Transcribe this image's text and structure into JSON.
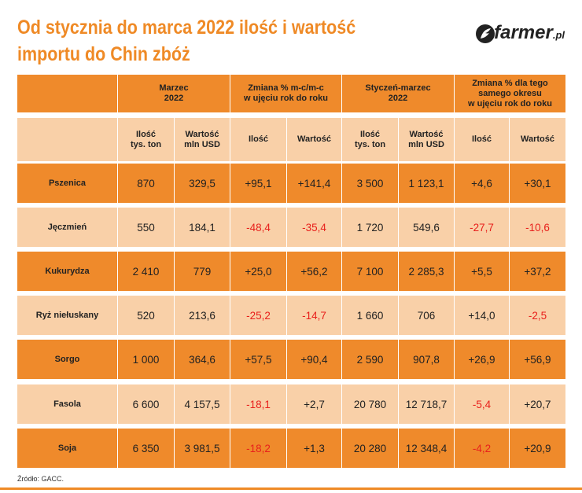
{
  "header": {
    "title_lines": [
      "Od stycznia do marca 2022 ilość i wartość",
      "importu do Chin zbóż"
    ],
    "logo": [
      "farmer",
      ".pl"
    ]
  },
  "table": {
    "group_headers": [
      "Marzec\n2022",
      "Zmiana % m-c/m-c\nw ujęciu rok do roku",
      "Styczeń-marzec\n2022",
      "Zmiana % dla tego\nsamego okresu\nw ujęciu rok do roku"
    ],
    "sub_headers": [
      "Ilość\ntys. ton",
      "Wartość\nmln USD",
      "Ilość",
      "Wartość",
      "Ilość\ntys. ton",
      "Wartość\nmln USD",
      "Ilość",
      "Wartość"
    ],
    "rows": [
      [
        "Pszenica",
        "870",
        "329,5",
        "+95,1",
        "+141,4",
        "3 500",
        "1 123,1",
        "+4,6",
        "+30,1"
      ],
      [
        "Jęczmień",
        "550",
        "184,1",
        "-48,4",
        "-35,4",
        "1 720",
        "549,6",
        "-27,7",
        "-10,6"
      ],
      [
        "Kukurydza",
        "2 410",
        "779",
        "+25,0",
        "+56,2",
        "7 100",
        "2 285,3",
        "+5,5",
        "+37,2"
      ],
      [
        "Ryż niełuskany",
        "520",
        "213,6",
        "-25,2",
        "-14,7",
        "1 660",
        "706",
        "+14,0",
        "-2,5"
      ],
      [
        "Sorgo",
        "1 000",
        "364,6",
        "+57,5",
        "+90,4",
        "2 590",
        "907,8",
        "+26,9",
        "+56,9"
      ],
      [
        "Fasola",
        "6 600",
        "4 157,5",
        "-18,1",
        "+2,7",
        "20 780",
        "12 718,7",
        "-5,4",
        "+20,7"
      ],
      [
        "Soja",
        "6 350",
        "3 981,5",
        "-18,2",
        "+1,3",
        "20 280",
        "12 348,4",
        "-4,2",
        "+20,9"
      ]
    ]
  },
  "footer": {
    "source": "Źródło: GACC."
  }
}
